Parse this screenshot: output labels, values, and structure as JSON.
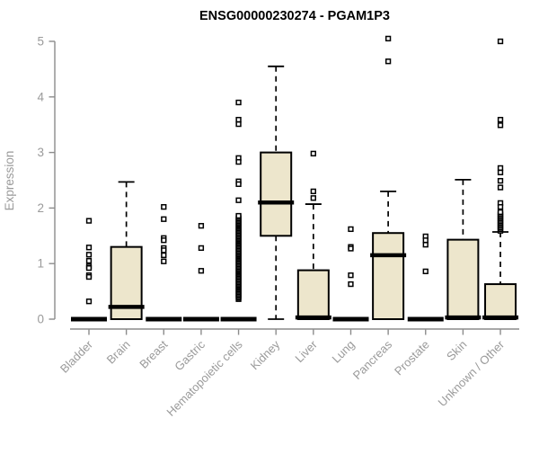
{
  "title": "ENSG00000230274 - PGAM1P3",
  "chart_data": {
    "type": "boxplot",
    "title": "ENSG00000230274 - PGAM1P3",
    "xlabel": "",
    "ylabel": "Expression",
    "ylim": [
      0,
      5
    ],
    "yticks": [
      0,
      1,
      2,
      3,
      4,
      5
    ],
    "grid": false,
    "legend": "none",
    "categories": [
      "Bladder",
      "Brain",
      "Breast",
      "Gastric",
      "Hematopoietic cells",
      "Kidney",
      "Liver",
      "Lung",
      "Pancreas",
      "Prostate",
      "Skin",
      "Unknown / Other"
    ],
    "series": [
      {
        "name": "Bladder",
        "flat": true,
        "q1": 0,
        "median": 0,
        "q3": 0,
        "whisker_low": 0,
        "whisker_high": 0,
        "outliers": [
          1.77,
          1.29,
          1.16,
          1.05,
          0.95,
          0.92,
          0.79,
          0.76,
          0.32
        ]
      },
      {
        "name": "Brain",
        "flat": false,
        "q1": 0,
        "median": 0.22,
        "q3": 1.3,
        "whisker_low": 0,
        "whisker_high": 2.47,
        "outliers": []
      },
      {
        "name": "Breast",
        "flat": true,
        "q1": 0,
        "median": 0,
        "q3": 0,
        "whisker_low": 0,
        "whisker_high": 0,
        "outliers": [
          2.02,
          1.8,
          1.46,
          1.42,
          1.28,
          1.24,
          1.15,
          1.04
        ]
      },
      {
        "name": "Gastric",
        "flat": true,
        "q1": 0,
        "median": 0,
        "q3": 0,
        "whisker_low": 0,
        "whisker_high": 0,
        "outliers": [
          1.68,
          1.28,
          0.87
        ]
      },
      {
        "name": "Hematopoietic cells",
        "flat": true,
        "q1": 0,
        "median": 0,
        "q3": 0,
        "whisker_low": 0,
        "whisker_high": 0,
        "outliers": [
          3.9,
          3.59,
          3.51,
          2.9,
          2.83,
          2.48,
          2.43,
          2.14
        ],
        "outlier_ranges": [
          {
            "from": 0.36,
            "to": 1.86,
            "step": 0.025
          }
        ]
      },
      {
        "name": "Kidney",
        "flat": false,
        "q1": 1.5,
        "median": 2.1,
        "q3": 3.0,
        "whisker_low": 0,
        "whisker_high": 4.55,
        "outliers": []
      },
      {
        "name": "Liver",
        "flat": false,
        "q1": 0,
        "median": 0.03,
        "q3": 0.88,
        "whisker_low": 0,
        "whisker_high": 2.07,
        "outliers": [
          2.98,
          2.3,
          2.18
        ]
      },
      {
        "name": "Lung",
        "flat": true,
        "q1": 0,
        "median": 0,
        "q3": 0,
        "whisker_low": 0,
        "whisker_high": 0,
        "outliers": [
          1.62,
          1.3,
          1.27,
          0.79,
          0.63
        ]
      },
      {
        "name": "Pancreas",
        "flat": false,
        "q1": 0,
        "median": 1.15,
        "q3": 1.55,
        "whisker_low": 0,
        "whisker_high": 2.3,
        "outliers": [
          5.05,
          4.64
        ]
      },
      {
        "name": "Prostate",
        "flat": true,
        "q1": 0,
        "median": 0,
        "q3": 0,
        "whisker_low": 0,
        "whisker_high": 0,
        "outliers": [
          1.49,
          1.42,
          1.34,
          0.86
        ]
      },
      {
        "name": "Skin",
        "flat": false,
        "q1": 0,
        "median": 0.03,
        "q3": 1.43,
        "whisker_low": 0,
        "whisker_high": 2.51,
        "outliers": []
      },
      {
        "name": "Unknown / Other",
        "flat": false,
        "q1": 0,
        "median": 0.03,
        "q3": 0.63,
        "whisker_low": 0,
        "whisker_high": 1.57,
        "outliers": [
          5.0,
          3.59,
          3.49,
          2.72,
          2.64,
          2.49,
          2.37,
          2.09,
          2.02
        ],
        "outlier_ranges": [
          {
            "from": 1.59,
            "to": 1.95,
            "step": 0.028
          }
        ]
      }
    ]
  },
  "colors": {
    "box_fill": "#ede6cc",
    "box_stroke": "#000000",
    "median": "#000000",
    "outlier_stroke": "#000000",
    "outlier_fill": "#ffffff",
    "axis_line": "#8c8c8c",
    "axis_text": "#9a9a9a",
    "title": "#000000",
    "background": "#ffffff"
  }
}
